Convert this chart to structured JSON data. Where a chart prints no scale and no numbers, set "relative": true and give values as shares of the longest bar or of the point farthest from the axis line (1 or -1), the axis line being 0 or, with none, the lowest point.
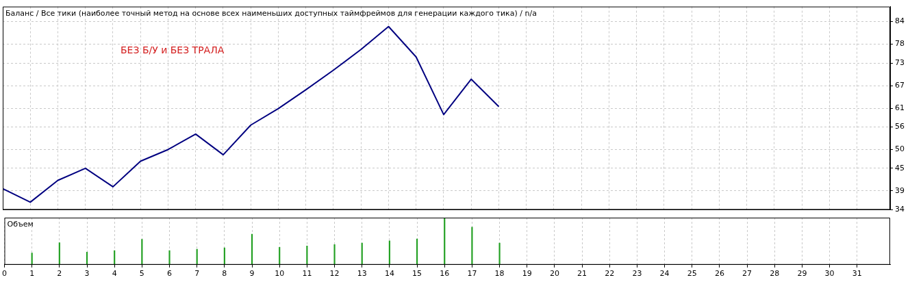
{
  "chart_data": [
    {
      "type": "line",
      "title": "Баланс / Все тики (наиболее точный метод на основе всех наименьших доступных таймфреймов для генерации каждого тика) / n/a",
      "annotations": [
        "БЕЗ Б/У и БЕЗ ТРАЛА"
      ],
      "x": [
        0,
        1,
        2,
        3,
        4,
        5,
        6,
        7,
        8,
        9,
        10,
        11,
        12,
        13,
        14,
        15,
        16,
        17,
        18
      ],
      "values": [
        39.6,
        36.0,
        41.8,
        45.0,
        40.1,
        46.9,
        50.0,
        54.1,
        48.6,
        56.5,
        60.9,
        65.9,
        71.1,
        76.6,
        82.7,
        74.6,
        59.3,
        68.7,
        61.4
      ],
      "color": "#000080",
      "xlim": [
        0,
        32.2
      ],
      "xticks": [
        0,
        1,
        2,
        3,
        4,
        5,
        6,
        7,
        8,
        9,
        10,
        11,
        12,
        13,
        14,
        15,
        16,
        17,
        18,
        19,
        20,
        21,
        22,
        23,
        24,
        25,
        26,
        27,
        28,
        29,
        30,
        31
      ],
      "ylim": [
        34,
        88
      ],
      "yticks": [
        34,
        39,
        45,
        50,
        56,
        61,
        67,
        73,
        78,
        84
      ],
      "grid": true,
      "tick_labels": "y"
    },
    {
      "type": "bar",
      "title": "Объем",
      "relative": true,
      "x": [
        1,
        2,
        3,
        4,
        5,
        6,
        7,
        8,
        9,
        10,
        11,
        12,
        13,
        14,
        15,
        16,
        17,
        18
      ],
      "values": [
        0.25,
        0.47,
        0.27,
        0.3,
        0.54,
        0.3,
        0.33,
        0.36,
        0.65,
        0.37,
        0.4,
        0.43,
        0.46,
        0.51,
        0.55,
        1,
        0.8,
        0.46
      ],
      "color": "#22a022",
      "xlim": [
        0,
        32.2
      ],
      "xticks": [
        0,
        1,
        2,
        3,
        4,
        5,
        6,
        7,
        8,
        9,
        10,
        11,
        12,
        13,
        14,
        15,
        16,
        17,
        18,
        19,
        20,
        21,
        22,
        23,
        24,
        25,
        26,
        27,
        28,
        29,
        30,
        31
      ],
      "grid": "x",
      "tick_labels": "x"
    }
  ]
}
